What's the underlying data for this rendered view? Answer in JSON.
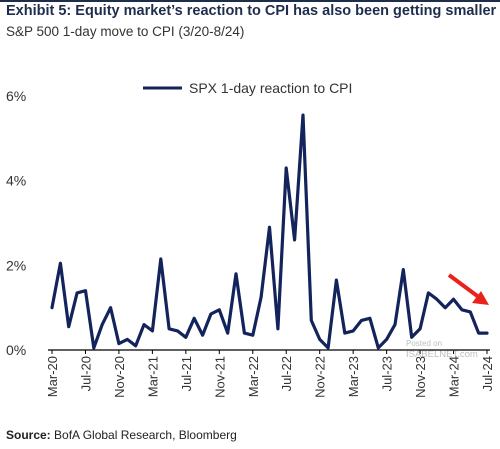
{
  "header": {
    "title": "Exhibit 5: Equity market’s reaction to CPI has also been getting smaller",
    "subtitle": "S&P 500 1-day move to CPI (3/20-8/24)"
  },
  "footer": {
    "source_label": "Source:",
    "source_text": " BofA Global Research, Bloomberg"
  },
  "watermark": {
    "line1": "Posted on",
    "line2": "ISABELNET.com"
  },
  "colors": {
    "series": "#13235b",
    "arrow": "#e8231c",
    "axis": "#000000",
    "text": "#333333"
  },
  "chart_data": {
    "type": "line",
    "title": "Exhibit 5: Equity market’s reaction to CPI has also been getting smaller",
    "subtitle": "S&P 500 1-day move to CPI (3/20-8/24)",
    "xlabel": "",
    "ylabel": "",
    "ylim": [
      0,
      6
    ],
    "yticks": [
      0,
      2,
      4,
      6
    ],
    "ytick_labels": [
      "0%",
      "2%",
      "4%",
      "6%"
    ],
    "x_tick_labels": [
      "Mar-20",
      "Jul-20",
      "Nov-20",
      "Mar-21",
      "Jul-21",
      "Nov-21",
      "Mar-22",
      "Jul-22",
      "Nov-22",
      "Mar-23",
      "Jul-23",
      "Nov-23",
      "Mar-24",
      "Jul-24"
    ],
    "grid": false,
    "legend_position": "top-center",
    "annotation": "red downward arrow over 2024",
    "series": [
      {
        "name": "SPX 1-day reaction to CPI",
        "x": [
          "Mar-20",
          "Apr-20",
          "May-20",
          "Jun-20",
          "Jul-20",
          "Aug-20",
          "Sep-20",
          "Oct-20",
          "Nov-20",
          "Dec-20",
          "Jan-21",
          "Feb-21",
          "Mar-21",
          "Apr-21",
          "May-21",
          "Jun-21",
          "Jul-21",
          "Aug-21",
          "Sep-21",
          "Oct-21",
          "Nov-21",
          "Dec-21",
          "Jan-22",
          "Feb-22",
          "Mar-22",
          "Apr-22",
          "May-22",
          "Jun-22",
          "Jul-22",
          "Aug-22",
          "Sep-22",
          "Oct-22",
          "Nov-22",
          "Dec-22",
          "Jan-23",
          "Feb-23",
          "Mar-23",
          "Apr-23",
          "May-23",
          "Jun-23",
          "Jul-23",
          "Aug-23",
          "Sep-23",
          "Oct-23",
          "Nov-23",
          "Dec-23",
          "Jan-24",
          "Feb-24",
          "Mar-24",
          "Apr-24",
          "May-24",
          "Jun-24",
          "Jul-24"
        ],
        "values": [
          1.0,
          2.05,
          0.55,
          1.35,
          1.4,
          0.05,
          0.6,
          1.0,
          0.15,
          0.25,
          0.1,
          0.6,
          0.45,
          2.15,
          0.5,
          0.45,
          0.3,
          0.75,
          0.35,
          0.85,
          0.95,
          0.4,
          1.8,
          0.4,
          0.35,
          1.25,
          2.9,
          0.5,
          4.3,
          2.6,
          5.55,
          0.7,
          0.25,
          0.05,
          1.65,
          0.4,
          0.45,
          0.7,
          0.75,
          0.05,
          0.25,
          0.6,
          1.9,
          0.3,
          0.5,
          1.35,
          1.2,
          1.0,
          1.2,
          0.95,
          0.9,
          0.4,
          0.4
        ]
      }
    ]
  }
}
